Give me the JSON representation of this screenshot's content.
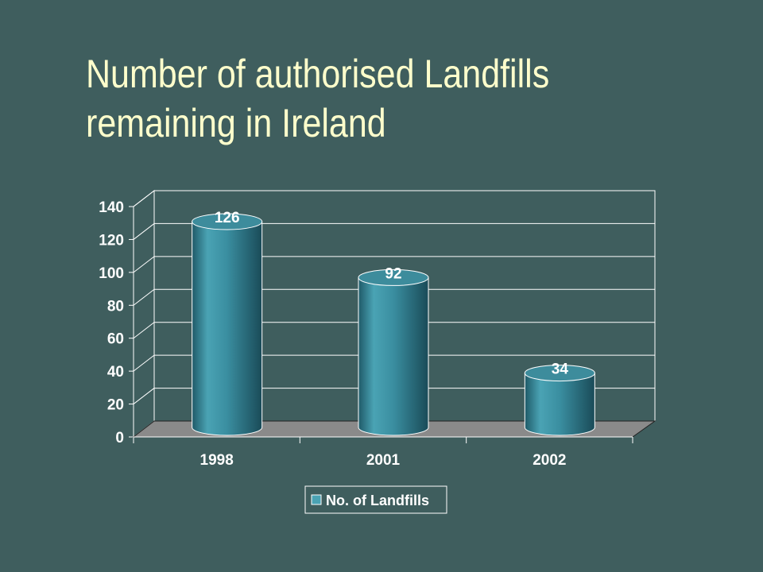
{
  "slide": {
    "title_line1": "Number of authorised Landfills",
    "title_line2": "remaining in Ireland"
  },
  "colors": {
    "background": "#3f5e5e",
    "title": "#ffffcc",
    "bar_light": "#4fa8b8",
    "bar_dark": "#1f5563",
    "bar_top": "#3d8c9c",
    "floor": "#8a8a8a",
    "grid": "#ffffff",
    "text": "#ffffff"
  },
  "chart_data": {
    "type": "bar",
    "style": "3d-cylinder",
    "categories": [
      "1998",
      "2001",
      "2002"
    ],
    "series": [
      {
        "name": "No. of Landfills",
        "values": [
          126,
          92,
          34
        ]
      }
    ],
    "ylim": [
      0,
      140
    ],
    "yticks": [
      "0",
      "20",
      "40",
      "60",
      "80",
      "100",
      "120",
      "140"
    ],
    "data_labels": [
      "126",
      "92",
      "34"
    ],
    "grid": true,
    "legend": {
      "position": "bottom-center",
      "entries": [
        "No. of Landfills"
      ]
    }
  }
}
